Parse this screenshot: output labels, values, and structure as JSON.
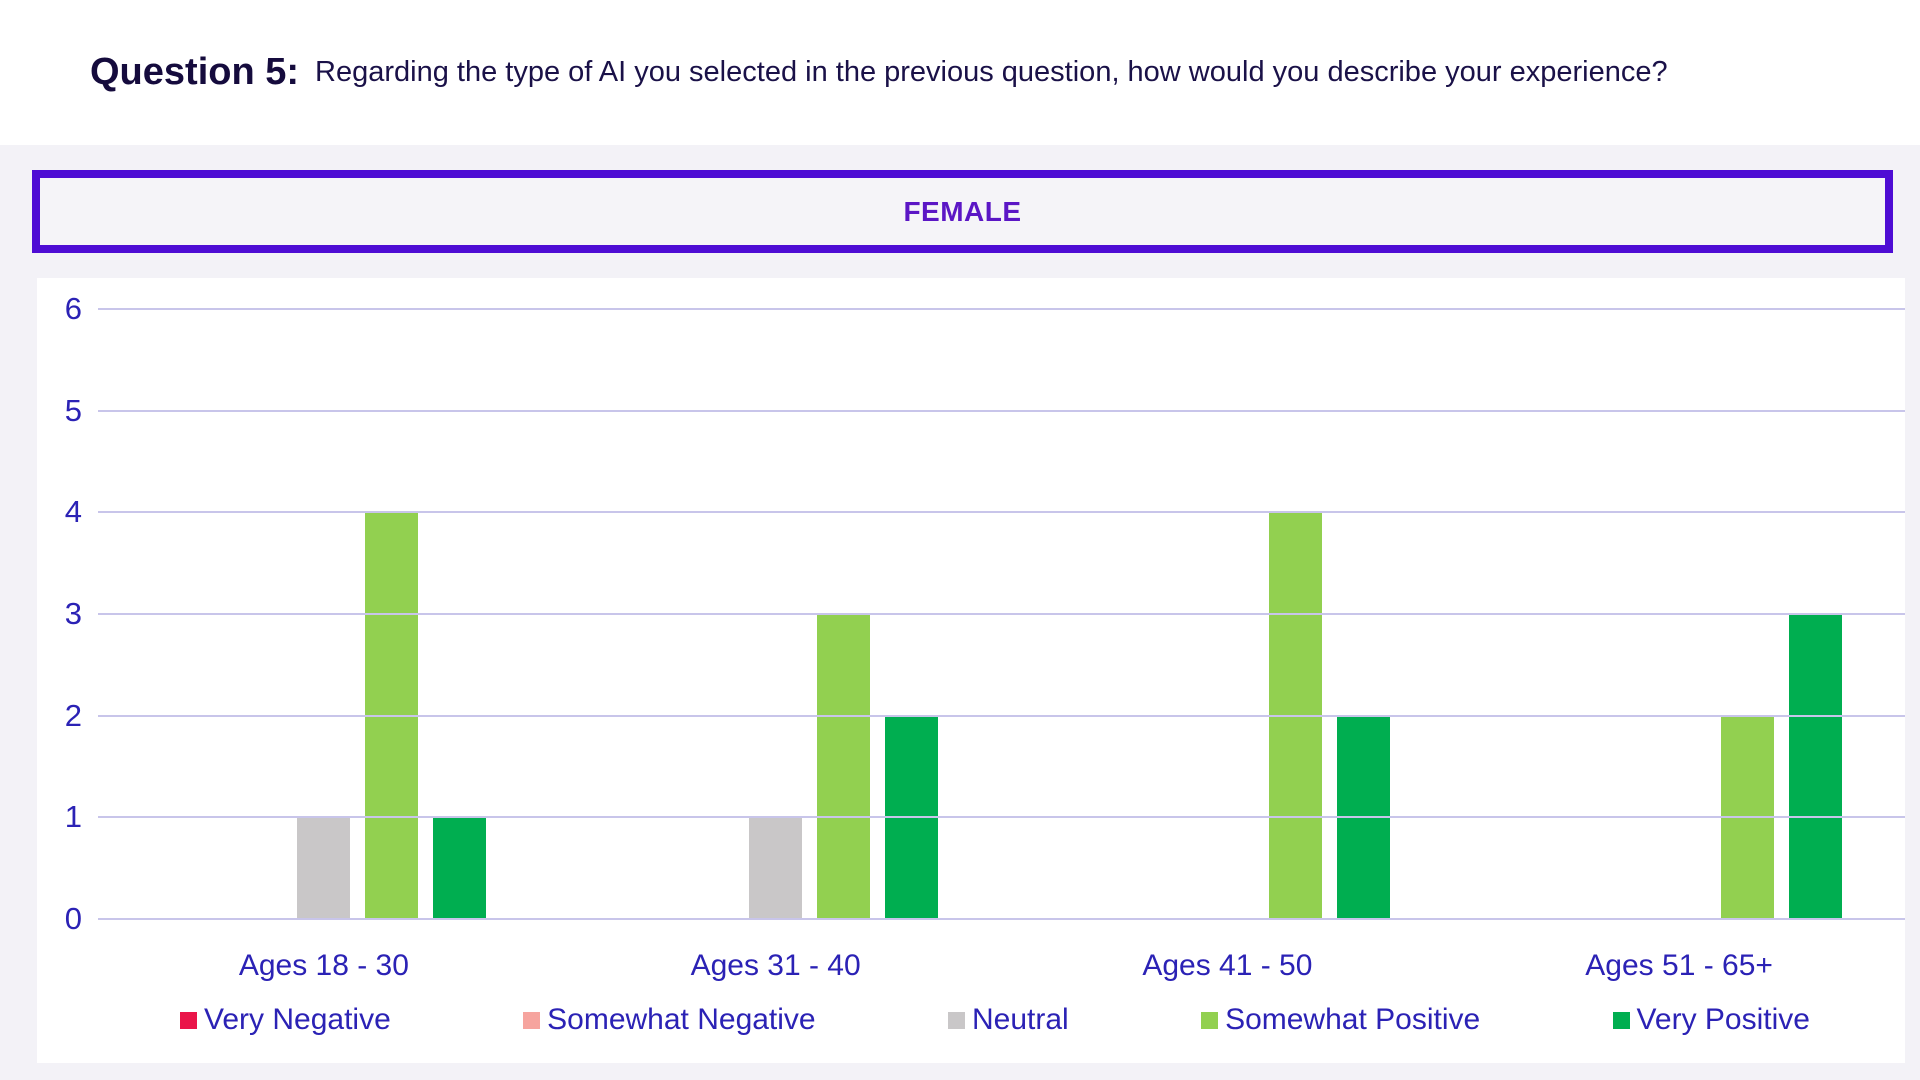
{
  "header": {
    "title_bold": "Question 5:",
    "title_rest": "Regarding the type of AI you selected in the previous question, how would you describe your experience?"
  },
  "banner": {
    "label": "FEMALE"
  },
  "colors": {
    "page_bg": "#F3F2F7",
    "card_bg": "#FFFFFF",
    "banner_border": "#4E0CD4",
    "banner_text": "#5B16C5",
    "title_text": "#150B3D",
    "axis_text": "#2B22B5",
    "gridline": "#C8C5EA"
  },
  "chart_data": {
    "type": "bar",
    "title": "FEMALE",
    "categories": [
      "Ages 18 - 30",
      "Ages 31 - 40",
      "Ages 41 - 50",
      "Ages 51 - 65+"
    ],
    "series": [
      {
        "name": "Very Negative",
        "color": "#EA1549",
        "values": [
          0,
          0,
          0,
          0
        ]
      },
      {
        "name": "Somewhat Negative",
        "color": "#F6A49E",
        "values": [
          0,
          0,
          0,
          0
        ]
      },
      {
        "name": "Neutral",
        "color": "#C9C7C8",
        "values": [
          1,
          1,
          0,
          0
        ]
      },
      {
        "name": "Somewhat Positive",
        "color": "#92D050",
        "values": [
          4,
          3,
          4,
          2
        ]
      },
      {
        "name": "Very Positive",
        "color": "#00AE50",
        "values": [
          1,
          2,
          2,
          3
        ]
      }
    ],
    "xlabel": "",
    "ylabel": "",
    "ylim": [
      0,
      6
    ],
    "yticks": [
      6,
      5,
      4,
      3,
      2,
      1,
      0
    ],
    "grid": true,
    "legend_position": "bottom"
  }
}
